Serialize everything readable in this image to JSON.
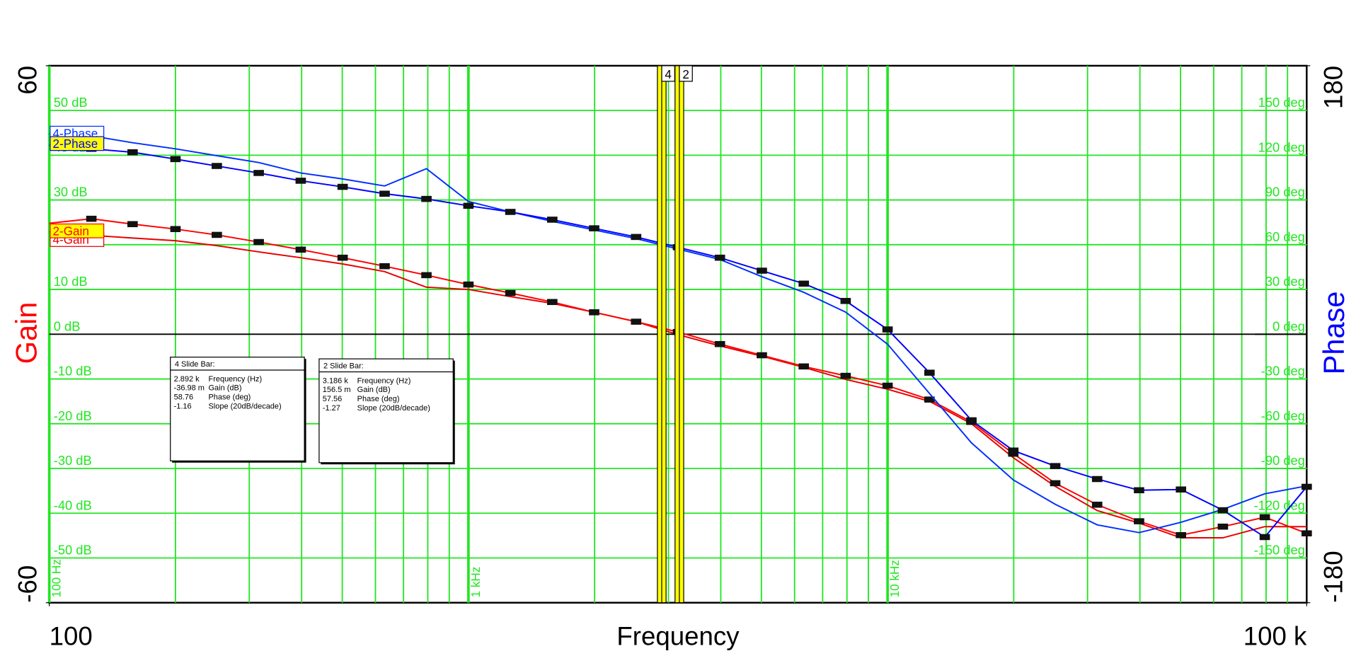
{
  "chart_data": {
    "type": "bode",
    "x_label": "Frequency",
    "y_label": "Gain",
    "y2_label": "Phase",
    "log_x": true,
    "xlim": [
      100,
      100000
    ],
    "xticks": [
      {
        "value": 100,
        "label": "100"
      },
      {
        "value": 100000,
        "label": "100 k"
      }
    ],
    "x_decade_labels": [
      {
        "value": 100,
        "label": "100 Hz"
      },
      {
        "value": 1000,
        "label": "1 kHz"
      },
      {
        "value": 10000,
        "label": "10 kHz"
      }
    ],
    "xgrid_minor": [
      200,
      300,
      400,
      500,
      600,
      700,
      800,
      900,
      2000,
      3000,
      4000,
      5000,
      6000,
      7000,
      8000,
      9000,
      20000,
      30000,
      40000,
      50000,
      60000,
      70000,
      80000,
      90000
    ],
    "ylim": [
      -60,
      60
    ],
    "yticks": [
      {
        "value": -60,
        "label": "-60"
      },
      {
        "value": 60,
        "label": "60"
      }
    ],
    "ygrid": [
      {
        "value": -50,
        "label": "-50 dB"
      },
      {
        "value": -40,
        "label": "-40 dB"
      },
      {
        "value": -30,
        "label": "-30 dB"
      },
      {
        "value": -20,
        "label": "-20 dB"
      },
      {
        "value": -10,
        "label": "-10 dB"
      },
      {
        "value": 0,
        "label": "0 dB"
      },
      {
        "value": 10,
        "label": "10 dB"
      },
      {
        "value": 20,
        "label": "20 dB"
      },
      {
        "value": 30,
        "label": "30 dB"
      },
      {
        "value": 40,
        "label": "40 dB"
      },
      {
        "value": 50,
        "label": "50 dB"
      }
    ],
    "y2lim": [
      -180,
      180
    ],
    "y2ticks": [
      {
        "value": -180,
        "label": "-180"
      },
      {
        "value": 180,
        "label": "180"
      }
    ],
    "y2grid": [
      {
        "value": -150,
        "label": "-150 deg"
      },
      {
        "value": -120,
        "label": "-120 deg"
      },
      {
        "value": -90,
        "label": "-90 deg"
      },
      {
        "value": -60,
        "label": "-60 deg"
      },
      {
        "value": -30,
        "label": "-30 deg"
      },
      {
        "value": 0,
        "label": "0 deg"
      },
      {
        "value": 30,
        "label": "30 deg"
      },
      {
        "value": 60,
        "label": "60 deg"
      },
      {
        "value": 90,
        "label": "90 deg"
      },
      {
        "value": 120,
        "label": "120 deg"
      },
      {
        "value": 150,
        "label": "150 deg"
      }
    ],
    "grid": true,
    "x": [
      100,
      126,
      158,
      200,
      251,
      316,
      398,
      501,
      631,
      794,
      1000,
      1259,
      1585,
      1995,
      2512,
      3162,
      3981,
      5012,
      6310,
      7943,
      10000,
      12589,
      15849,
      19953,
      25119,
      31623,
      39811,
      50119,
      63096,
      79433,
      100000
    ],
    "series": [
      {
        "name": "4-Gain",
        "color": "#e80000",
        "markers": false,
        "values": [
          22.9,
          22.1,
          21.5,
          20.9,
          19.8,
          18.4,
          17.1,
          15.7,
          14.0,
          10.5,
          10.0,
          8.4,
          6.9,
          4.9,
          2.8,
          -0.1,
          -2.6,
          -4.9,
          -7.4,
          -10.1,
          -12.3,
          -15.0,
          -20.0,
          -27.6,
          -34.0,
          -39.4,
          -42.2,
          -45.5,
          -45.5,
          -43.0,
          -43.0
        ]
      },
      {
        "name": "2-Gain",
        "color": "#ff0000",
        "markers": true,
        "values": [
          24.8,
          25.8,
          24.6,
          23.5,
          22.2,
          20.6,
          18.9,
          17.1,
          15.2,
          13.2,
          11.1,
          9.2,
          7.2,
          4.9,
          2.8,
          0.5,
          -2.2,
          -4.7,
          -7.2,
          -9.3,
          -11.5,
          -14.6,
          -19.6,
          -26.7,
          -33.3,
          -38.1,
          -41.8,
          -44.9,
          -43.0,
          -40.9,
          -44.5
        ]
      },
      {
        "name": "4-Phase",
        "color": "#0030ff",
        "markers": false,
        "axis": "y2",
        "values": [
          134.2,
          133.0,
          128.4,
          124.3,
          119.7,
          115.1,
          108.1,
          104.1,
          99.4,
          111.0,
          89.0,
          82.0,
          75.7,
          69.9,
          64.1,
          57.1,
          50.1,
          38.6,
          28.1,
          14.8,
          -6.7,
          -39.7,
          -72.8,
          -97.7,
          -114.0,
          -127.8,
          -133.0,
          -126.1,
          -117.4,
          -107.0,
          -101.7
        ]
      },
      {
        "name": "2-Phase",
        "color": "#0000ff",
        "markers": true,
        "axis": "y2",
        "values": [
          126.7,
          124.3,
          122.0,
          117.4,
          112.8,
          108.1,
          102.9,
          98.8,
          94.2,
          90.7,
          86.1,
          82.0,
          76.8,
          71.0,
          65.2,
          58.3,
          51.3,
          42.6,
          33.9,
          22.3,
          3.2,
          -25.8,
          -57.7,
          -78.0,
          -88.4,
          -97.1,
          -104.6,
          -104.1,
          -118.0,
          -136.0,
          -102.3
        ]
      }
    ],
    "cursors": [
      {
        "label": "4",
        "x": 2892
      },
      {
        "label": "2",
        "x": 3186
      }
    ],
    "readouts": [
      {
        "title": "4  Slide Bar:",
        "rows": [
          [
            "2.892 k",
            "Frequency (Hz)"
          ],
          [
            "-36.98 m",
            "Gain (dB)"
          ],
          [
            "58.76",
            "Phase (deg)"
          ],
          [
            "-1.16",
            "Slope (20dB/decade)"
          ]
        ]
      },
      {
        "title": "2  Slide Bar:",
        "rows": [
          [
            "3.186 k",
            "Frequency (Hz)"
          ],
          [
            "156.5 m",
            "Gain (dB)"
          ],
          [
            "57.56",
            "Phase (deg)"
          ],
          [
            "-1.27",
            "Slope (20dB/decade)"
          ]
        ]
      }
    ]
  }
}
